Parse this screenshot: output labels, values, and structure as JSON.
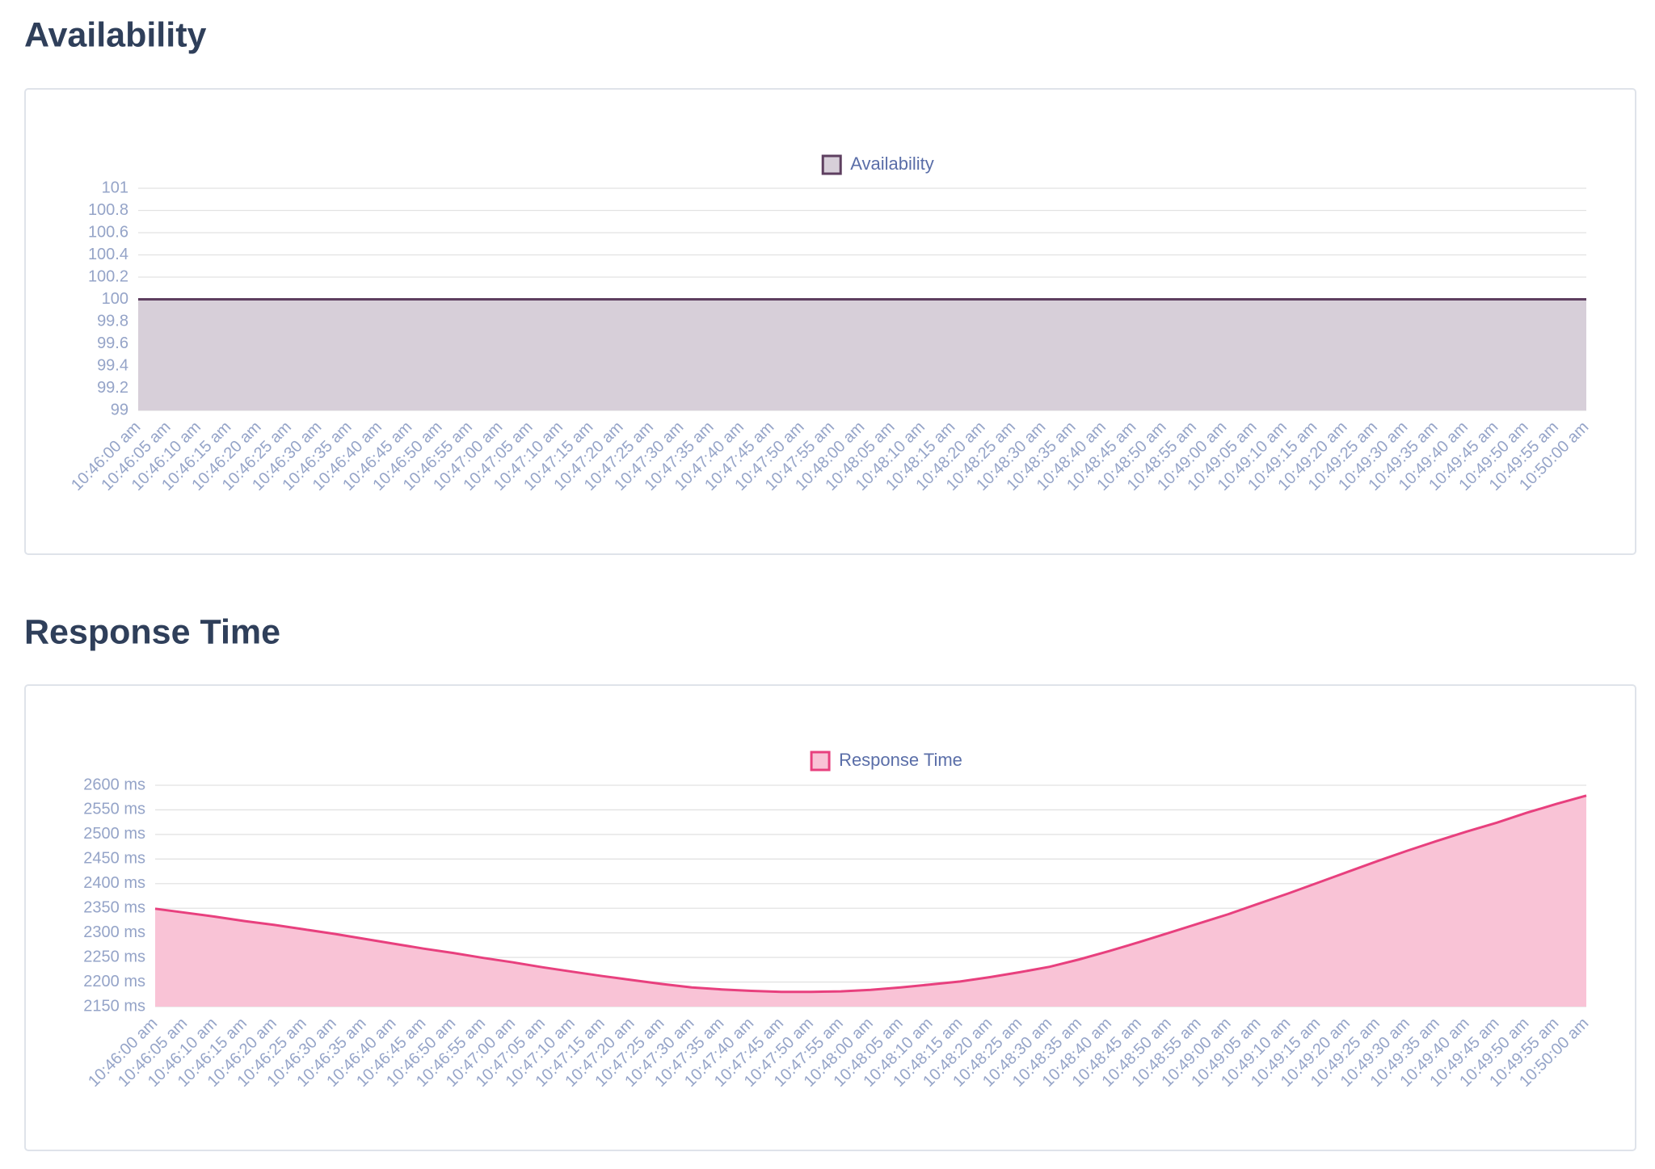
{
  "chart_data": [
    {
      "type": "area",
      "title": "Availability",
      "categories": [
        "10:46:00 am",
        "10:46:05 am",
        "10:46:10 am",
        "10:46:15 am",
        "10:46:20 am",
        "10:46:25 am",
        "10:46:30 am",
        "10:46:35 am",
        "10:46:40 am",
        "10:46:45 am",
        "10:46:50 am",
        "10:46:55 am",
        "10:47:00 am",
        "10:47:05 am",
        "10:47:10 am",
        "10:47:15 am",
        "10:47:20 am",
        "10:47:25 am",
        "10:47:30 am",
        "10:47:35 am",
        "10:47:40 am",
        "10:47:45 am",
        "10:47:50 am",
        "10:47:55 am",
        "10:48:00 am",
        "10:48:05 am",
        "10:48:10 am",
        "10:48:15 am",
        "10:48:20 am",
        "10:48:25 am",
        "10:48:30 am",
        "10:48:35 am",
        "10:48:40 am",
        "10:48:45 am",
        "10:48:50 am",
        "10:48:55 am",
        "10:49:00 am",
        "10:49:05 am",
        "10:49:10 am",
        "10:49:15 am",
        "10:49:20 am",
        "10:49:25 am",
        "10:49:30 am",
        "10:49:35 am",
        "10:49:40 am",
        "10:49:45 am",
        "10:49:50 am",
        "10:49:55 am",
        "10:50:00 am"
      ],
      "series": [
        {
          "name": "Availability",
          "color": "#5e3f60",
          "fill": "#d7cfd9",
          "values": [
            100,
            100,
            100,
            100,
            100,
            100,
            100,
            100,
            100,
            100,
            100,
            100,
            100,
            100,
            100,
            100,
            100,
            100,
            100,
            100,
            100,
            100,
            100,
            100,
            100,
            100,
            100,
            100,
            100,
            100,
            100,
            100,
            100,
            100,
            100,
            100,
            100,
            100,
            100,
            100,
            100,
            100,
            100,
            100,
            100,
            100,
            100,
            100,
            100
          ]
        }
      ],
      "ylim": [
        99,
        101
      ],
      "yticks": [
        99,
        99.2,
        99.4,
        99.6,
        99.8,
        100,
        100.2,
        100.4,
        100.6,
        100.8,
        101
      ],
      "grid": true,
      "legend": "top"
    },
    {
      "type": "area",
      "title": "Response Time",
      "categories": [
        "10:46:00 am",
        "10:46:05 am",
        "10:46:10 am",
        "10:46:15 am",
        "10:46:20 am",
        "10:46:25 am",
        "10:46:30 am",
        "10:46:35 am",
        "10:46:40 am",
        "10:46:45 am",
        "10:46:50 am",
        "10:46:55 am",
        "10:47:00 am",
        "10:47:05 am",
        "10:47:10 am",
        "10:47:15 am",
        "10:47:20 am",
        "10:47:25 am",
        "10:47:30 am",
        "10:47:35 am",
        "10:47:40 am",
        "10:47:45 am",
        "10:47:50 am",
        "10:47:55 am",
        "10:48:00 am",
        "10:48:05 am",
        "10:48:10 am",
        "10:48:15 am",
        "10:48:20 am",
        "10:48:25 am",
        "10:48:30 am",
        "10:48:35 am",
        "10:48:40 am",
        "10:48:45 am",
        "10:48:50 am",
        "10:48:55 am",
        "10:49:00 am",
        "10:49:05 am",
        "10:49:10 am",
        "10:49:15 am",
        "10:49:20 am",
        "10:49:25 am",
        "10:49:30 am",
        "10:49:35 am",
        "10:49:40 am",
        "10:49:45 am",
        "10:49:50 am",
        "10:49:55 am",
        "10:50:00 am"
      ],
      "series": [
        {
          "name": "Response Time",
          "color": "#e8407e",
          "fill": "#f9c3d6",
          "values": [
            2349,
            2341,
            2333,
            2324,
            2316,
            2307,
            2298,
            2288,
            2278,
            2268,
            2259,
            2249,
            2240,
            2230,
            2221,
            2212,
            2204,
            2196,
            2189,
            2185,
            2182,
            2180,
            2180,
            2181,
            2184,
            2189,
            2195,
            2201,
            2210,
            2220,
            2231,
            2246,
            2263,
            2281,
            2300,
            2319,
            2338,
            2359,
            2380,
            2402,
            2424,
            2446,
            2467,
            2487,
            2506,
            2524,
            2544,
            2562,
            2579
          ]
        }
      ],
      "ylim": [
        2150,
        2600
      ],
      "yticks": [
        {
          "value": 2150,
          "label": "2150 ms"
        },
        {
          "value": 2200,
          "label": "2200 ms"
        },
        {
          "value": 2250,
          "label": "2250 ms"
        },
        {
          "value": 2300,
          "label": "2300 ms"
        },
        {
          "value": 2350,
          "label": "2350 ms"
        },
        {
          "value": 2400,
          "label": "2400 ms"
        },
        {
          "value": 2450,
          "label": "2450 ms"
        },
        {
          "value": 2500,
          "label": "2500 ms"
        },
        {
          "value": 2550,
          "label": "2550 ms"
        },
        {
          "value": 2600,
          "label": "2600 ms"
        }
      ],
      "grid": true,
      "legend": "top"
    }
  ]
}
